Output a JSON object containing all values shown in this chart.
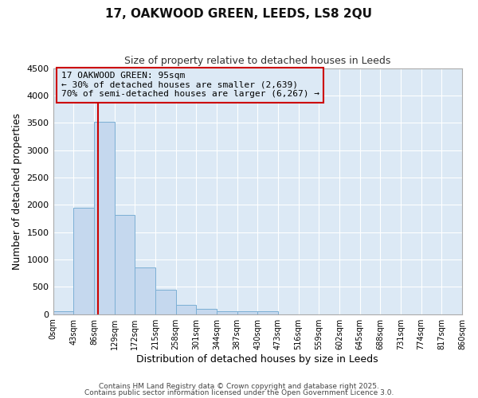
{
  "title": "17, OAKWOOD GREEN, LEEDS, LS8 2QU",
  "subtitle": "Size of property relative to detached houses in Leeds",
  "xlabel": "Distribution of detached houses by size in Leeds",
  "ylabel": "Number of detached properties",
  "bin_edges": [
    0,
    43,
    86,
    129,
    172,
    215,
    258,
    301,
    344,
    387,
    430,
    473,
    516,
    559,
    602,
    645,
    688,
    731,
    774,
    817,
    860
  ],
  "bar_heights": [
    50,
    1950,
    3520,
    1820,
    850,
    450,
    170,
    100,
    60,
    50,
    50,
    0,
    0,
    0,
    0,
    0,
    0,
    0,
    0,
    0
  ],
  "bar_color": "#c5d8ee",
  "bar_edge_color": "#7bafd4",
  "property_line_x": 95,
  "property_line_color": "#cc0000",
  "ylim": [
    0,
    4500
  ],
  "yticks": [
    0,
    500,
    1000,
    1500,
    2000,
    2500,
    3000,
    3500,
    4000,
    4500
  ],
  "annotation_line1": "17 OAKWOOD GREEN: 95sqm",
  "annotation_line2": "← 30% of detached houses are smaller (2,639)",
  "annotation_line3": "70% of semi-detached houses are larger (6,267) →",
  "annotation_box_color": "#cc0000",
  "background_color": "#ffffff",
  "plot_bg_color": "#dce9f5",
  "grid_color": "#ffffff",
  "footer_line1": "Contains HM Land Registry data © Crown copyright and database right 2025.",
  "footer_line2": "Contains public sector information licensed under the Open Government Licence 3.0."
}
